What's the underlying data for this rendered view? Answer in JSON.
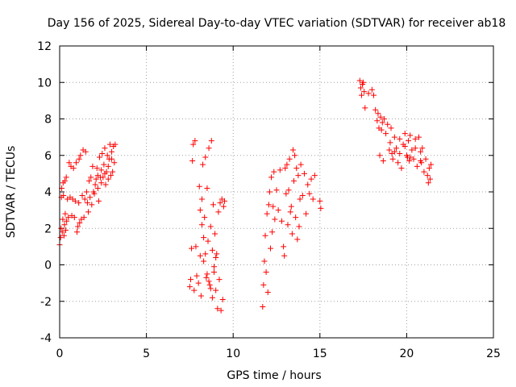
{
  "chart_data": {
    "type": "scatter",
    "title": "Day 156 of 2025, Sidereal Day-to-day VTEC variation (SDTVAR) for receiver ab18",
    "xlabel": "GPS time / hours",
    "ylabel": "SDTVAR / TECUs",
    "xlim": [
      0,
      25
    ],
    "ylim": [
      -4,
      12
    ],
    "xticks": [
      "0",
      "5",
      "10",
      "15",
      "20",
      "25"
    ],
    "yticks": [
      "-4",
      "-2",
      "0",
      "2",
      "4",
      "6",
      "8",
      "10",
      "12"
    ],
    "grid": true,
    "marker": "+",
    "color": "#ff0000",
    "points": [
      [
        0.0,
        1.1
      ],
      [
        0.05,
        1.5
      ],
      [
        0.08,
        2.0
      ],
      [
        0.1,
        3.7
      ],
      [
        0.12,
        4.2
      ],
      [
        0.15,
        1.8
      ],
      [
        0.18,
        2.5
      ],
      [
        0.2,
        4.5
      ],
      [
        0.22,
        3.8
      ],
      [
        0.25,
        1.6
      ],
      [
        0.28,
        2.2
      ],
      [
        0.3,
        4.6
      ],
      [
        0.32,
        2.8
      ],
      [
        0.35,
        1.9
      ],
      [
        0.38,
        4.8
      ],
      [
        0.4,
        2.4
      ],
      [
        0.45,
        3.6
      ],
      [
        0.5,
        2.6
      ],
      [
        0.55,
        5.6
      ],
      [
        0.6,
        3.7
      ],
      [
        0.65,
        5.4
      ],
      [
        0.7,
        2.7
      ],
      [
        0.75,
        3.6
      ],
      [
        0.8,
        5.3
      ],
      [
        0.85,
        2.6
      ],
      [
        0.9,
        3.5
      ],
      [
        0.95,
        5.6
      ],
      [
        1.0,
        1.8
      ],
      [
        1.05,
        2.1
      ],
      [
        1.1,
        3.4
      ],
      [
        1.12,
        5.8
      ],
      [
        1.15,
        2.3
      ],
      [
        1.2,
        6.0
      ],
      [
        1.25,
        2.5
      ],
      [
        1.3,
        3.8
      ],
      [
        1.35,
        6.3
      ],
      [
        1.4,
        2.6
      ],
      [
        1.45,
        3.6
      ],
      [
        1.5,
        6.2
      ],
      [
        1.55,
        4.0
      ],
      [
        1.6,
        3.4
      ],
      [
        1.65,
        2.9
      ],
      [
        1.7,
        4.6
      ],
      [
        1.75,
        3.7
      ],
      [
        1.8,
        4.8
      ],
      [
        1.85,
        3.3
      ],
      [
        1.9,
        5.4
      ],
      [
        1.95,
        4.0
      ],
      [
        2.0,
        3.9
      ],
      [
        2.05,
        4.4
      ],
      [
        2.1,
        4.7
      ],
      [
        2.15,
        5.3
      ],
      [
        2.2,
        4.2
      ],
      [
        2.25,
        3.5
      ],
      [
        2.3,
        5.9
      ],
      [
        2.35,
        4.8
      ],
      [
        2.4,
        4.5
      ],
      [
        2.45,
        6.1
      ],
      [
        2.5,
        4.8
      ],
      [
        2.55,
        5.5
      ],
      [
        2.6,
        6.4
      ],
      [
        2.65,
        4.4
      ],
      [
        2.7,
        5.1
      ],
      [
        2.75,
        6.0
      ],
      [
        2.8,
        4.7
      ],
      [
        2.85,
        5.8
      ],
      [
        2.9,
        6.6
      ],
      [
        2.95,
        4.9
      ],
      [
        3.0,
        6.2
      ],
      [
        3.05,
        5.1
      ],
      [
        3.1,
        6.5
      ],
      [
        3.15,
        5.6
      ],
      [
        3.2,
        6.6
      ],
      [
        2.4,
        5.2
      ],
      [
        2.6,
        5.0
      ],
      [
        2.8,
        5.4
      ],
      [
        3.0,
        5.8
      ],
      [
        2.2,
        4.9
      ],
      [
        7.5,
        -1.2
      ],
      [
        7.55,
        -0.8
      ],
      [
        7.6,
        0.9
      ],
      [
        7.65,
        5.7
      ],
      [
        7.7,
        6.6
      ],
      [
        7.75,
        -1.4
      ],
      [
        7.8,
        6.8
      ],
      [
        7.85,
        1.0
      ],
      [
        7.9,
        -0.6
      ],
      [
        8.0,
        -1.0
      ],
      [
        8.05,
        4.3
      ],
      [
        8.1,
        0.5
      ],
      [
        8.15,
        -1.7
      ],
      [
        8.2,
        3.6
      ],
      [
        8.25,
        5.5
      ],
      [
        8.3,
        0.2
      ],
      [
        8.35,
        2.6
      ],
      [
        8.4,
        5.9
      ],
      [
        8.45,
        -0.7
      ],
      [
        8.5,
        4.2
      ],
      [
        8.55,
        1.3
      ],
      [
        8.6,
        6.4
      ],
      [
        8.65,
        -1.1
      ],
      [
        8.7,
        2.1
      ],
      [
        8.75,
        6.8
      ],
      [
        8.8,
        0.8
      ],
      [
        8.85,
        3.3
      ],
      [
        8.9,
        -0.4
      ],
      [
        8.95,
        1.7
      ],
      [
        9.0,
        -1.4
      ],
      [
        9.05,
        0.6
      ],
      [
        9.1,
        -2.4
      ],
      [
        9.15,
        2.9
      ],
      [
        9.2,
        -0.8
      ],
      [
        9.25,
        3.4
      ],
      [
        9.3,
        -2.5
      ],
      [
        9.35,
        3.6
      ],
      [
        9.4,
        -1.9
      ],
      [
        9.45,
        3.2
      ],
      [
        9.5,
        3.5
      ],
      [
        8.1,
        3.0
      ],
      [
        8.2,
        2.2
      ],
      [
        8.3,
        1.5
      ],
      [
        8.4,
        0.6
      ],
      [
        8.5,
        -0.5
      ],
      [
        8.6,
        -0.9
      ],
      [
        8.7,
        -1.3
      ],
      [
        8.8,
        -1.8
      ],
      [
        8.9,
        -0.1
      ],
      [
        9.0,
        0.4
      ],
      [
        11.7,
        -2.3
      ],
      [
        11.75,
        -1.1
      ],
      [
        11.8,
        0.2
      ],
      [
        11.85,
        1.6
      ],
      [
        11.9,
        -0.4
      ],
      [
        11.95,
        2.8
      ],
      [
        12.0,
        -1.5
      ],
      [
        12.05,
        3.3
      ],
      [
        12.1,
        4.0
      ],
      [
        12.15,
        0.9
      ],
      [
        12.2,
        4.8
      ],
      [
        12.25,
        1.8
      ],
      [
        12.3,
        3.2
      ],
      [
        12.35,
        5.1
      ],
      [
        12.4,
        2.5
      ],
      [
        12.5,
        4.1
      ],
      [
        12.6,
        3.0
      ],
      [
        12.7,
        5.2
      ],
      [
        12.8,
        2.4
      ],
      [
        12.9,
        1.0
      ],
      [
        12.95,
        0.5
      ],
      [
        13.0,
        5.3
      ],
      [
        13.05,
        3.9
      ],
      [
        13.1,
        5.5
      ],
      [
        13.15,
        2.2
      ],
      [
        13.2,
        4.1
      ],
      [
        13.25,
        5.8
      ],
      [
        13.3,
        2.9
      ],
      [
        13.4,
        1.7
      ],
      [
        13.5,
        4.6
      ],
      [
        13.55,
        6.0
      ],
      [
        13.6,
        2.6
      ],
      [
        13.65,
        5.3
      ],
      [
        13.7,
        1.4
      ],
      [
        13.75,
        4.9
      ],
      [
        13.8,
        2.1
      ],
      [
        13.85,
        3.6
      ],
      [
        13.9,
        5.5
      ],
      [
        14.0,
        3.8
      ],
      [
        14.1,
        5.0
      ],
      [
        14.2,
        2.8
      ],
      [
        14.3,
        4.4
      ],
      [
        14.4,
        3.9
      ],
      [
        14.5,
        4.7
      ],
      [
        14.6,
        3.6
      ],
      [
        14.7,
        4.9
      ],
      [
        15.0,
        3.5
      ],
      [
        15.05,
        3.1
      ],
      [
        13.45,
        6.3
      ],
      [
        13.35,
        3.2
      ],
      [
        17.3,
        10.1
      ],
      [
        17.35,
        9.7
      ],
      [
        17.4,
        9.3
      ],
      [
        17.45,
        9.9
      ],
      [
        17.5,
        10.0
      ],
      [
        17.55,
        9.5
      ],
      [
        17.6,
        8.6
      ],
      [
        17.8,
        9.4
      ],
      [
        18.0,
        9.6
      ],
      [
        18.1,
        9.3
      ],
      [
        18.2,
        8.5
      ],
      [
        18.3,
        7.9
      ],
      [
        18.35,
        8.3
      ],
      [
        18.4,
        7.5
      ],
      [
        18.45,
        6.0
      ],
      [
        18.5,
        8.1
      ],
      [
        18.55,
        7.4
      ],
      [
        18.6,
        7.8
      ],
      [
        18.65,
        5.7
      ],
      [
        18.7,
        8.0
      ],
      [
        18.8,
        7.2
      ],
      [
        18.9,
        7.7
      ],
      [
        19.0,
        6.3
      ],
      [
        19.05,
        6.7
      ],
      [
        19.1,
        7.5
      ],
      [
        19.15,
        6.1
      ],
      [
        19.2,
        5.8
      ],
      [
        19.3,
        7.0
      ],
      [
        19.4,
        6.4
      ],
      [
        19.5,
        5.6
      ],
      [
        19.6,
        6.9
      ],
      [
        19.7,
        5.3
      ],
      [
        19.8,
        6.6
      ],
      [
        19.9,
        7.2
      ],
      [
        20.0,
        6.0
      ],
      [
        20.05,
        5.9
      ],
      [
        20.1,
        6.8
      ],
      [
        20.15,
        5.7
      ],
      [
        20.2,
        7.1
      ],
      [
        20.3,
        6.3
      ],
      [
        20.4,
        5.8
      ],
      [
        20.5,
        6.9
      ],
      [
        20.6,
        5.4
      ],
      [
        20.7,
        7.0
      ],
      [
        20.8,
        6.2
      ],
      [
        20.85,
        5.6
      ],
      [
        20.9,
        6.4
      ],
      [
        21.0,
        5.1
      ],
      [
        21.1,
        5.8
      ],
      [
        21.2,
        4.9
      ],
      [
        21.25,
        4.5
      ],
      [
        21.3,
        5.3
      ],
      [
        21.35,
        4.7
      ],
      [
        21.4,
        5.5
      ],
      [
        19.3,
        6.2
      ],
      [
        19.6,
        6.1
      ],
      [
        19.9,
        6.5
      ],
      [
        20.2,
        5.9
      ],
      [
        20.5,
        6.4
      ],
      [
        20.8,
        5.7
      ]
    ]
  }
}
